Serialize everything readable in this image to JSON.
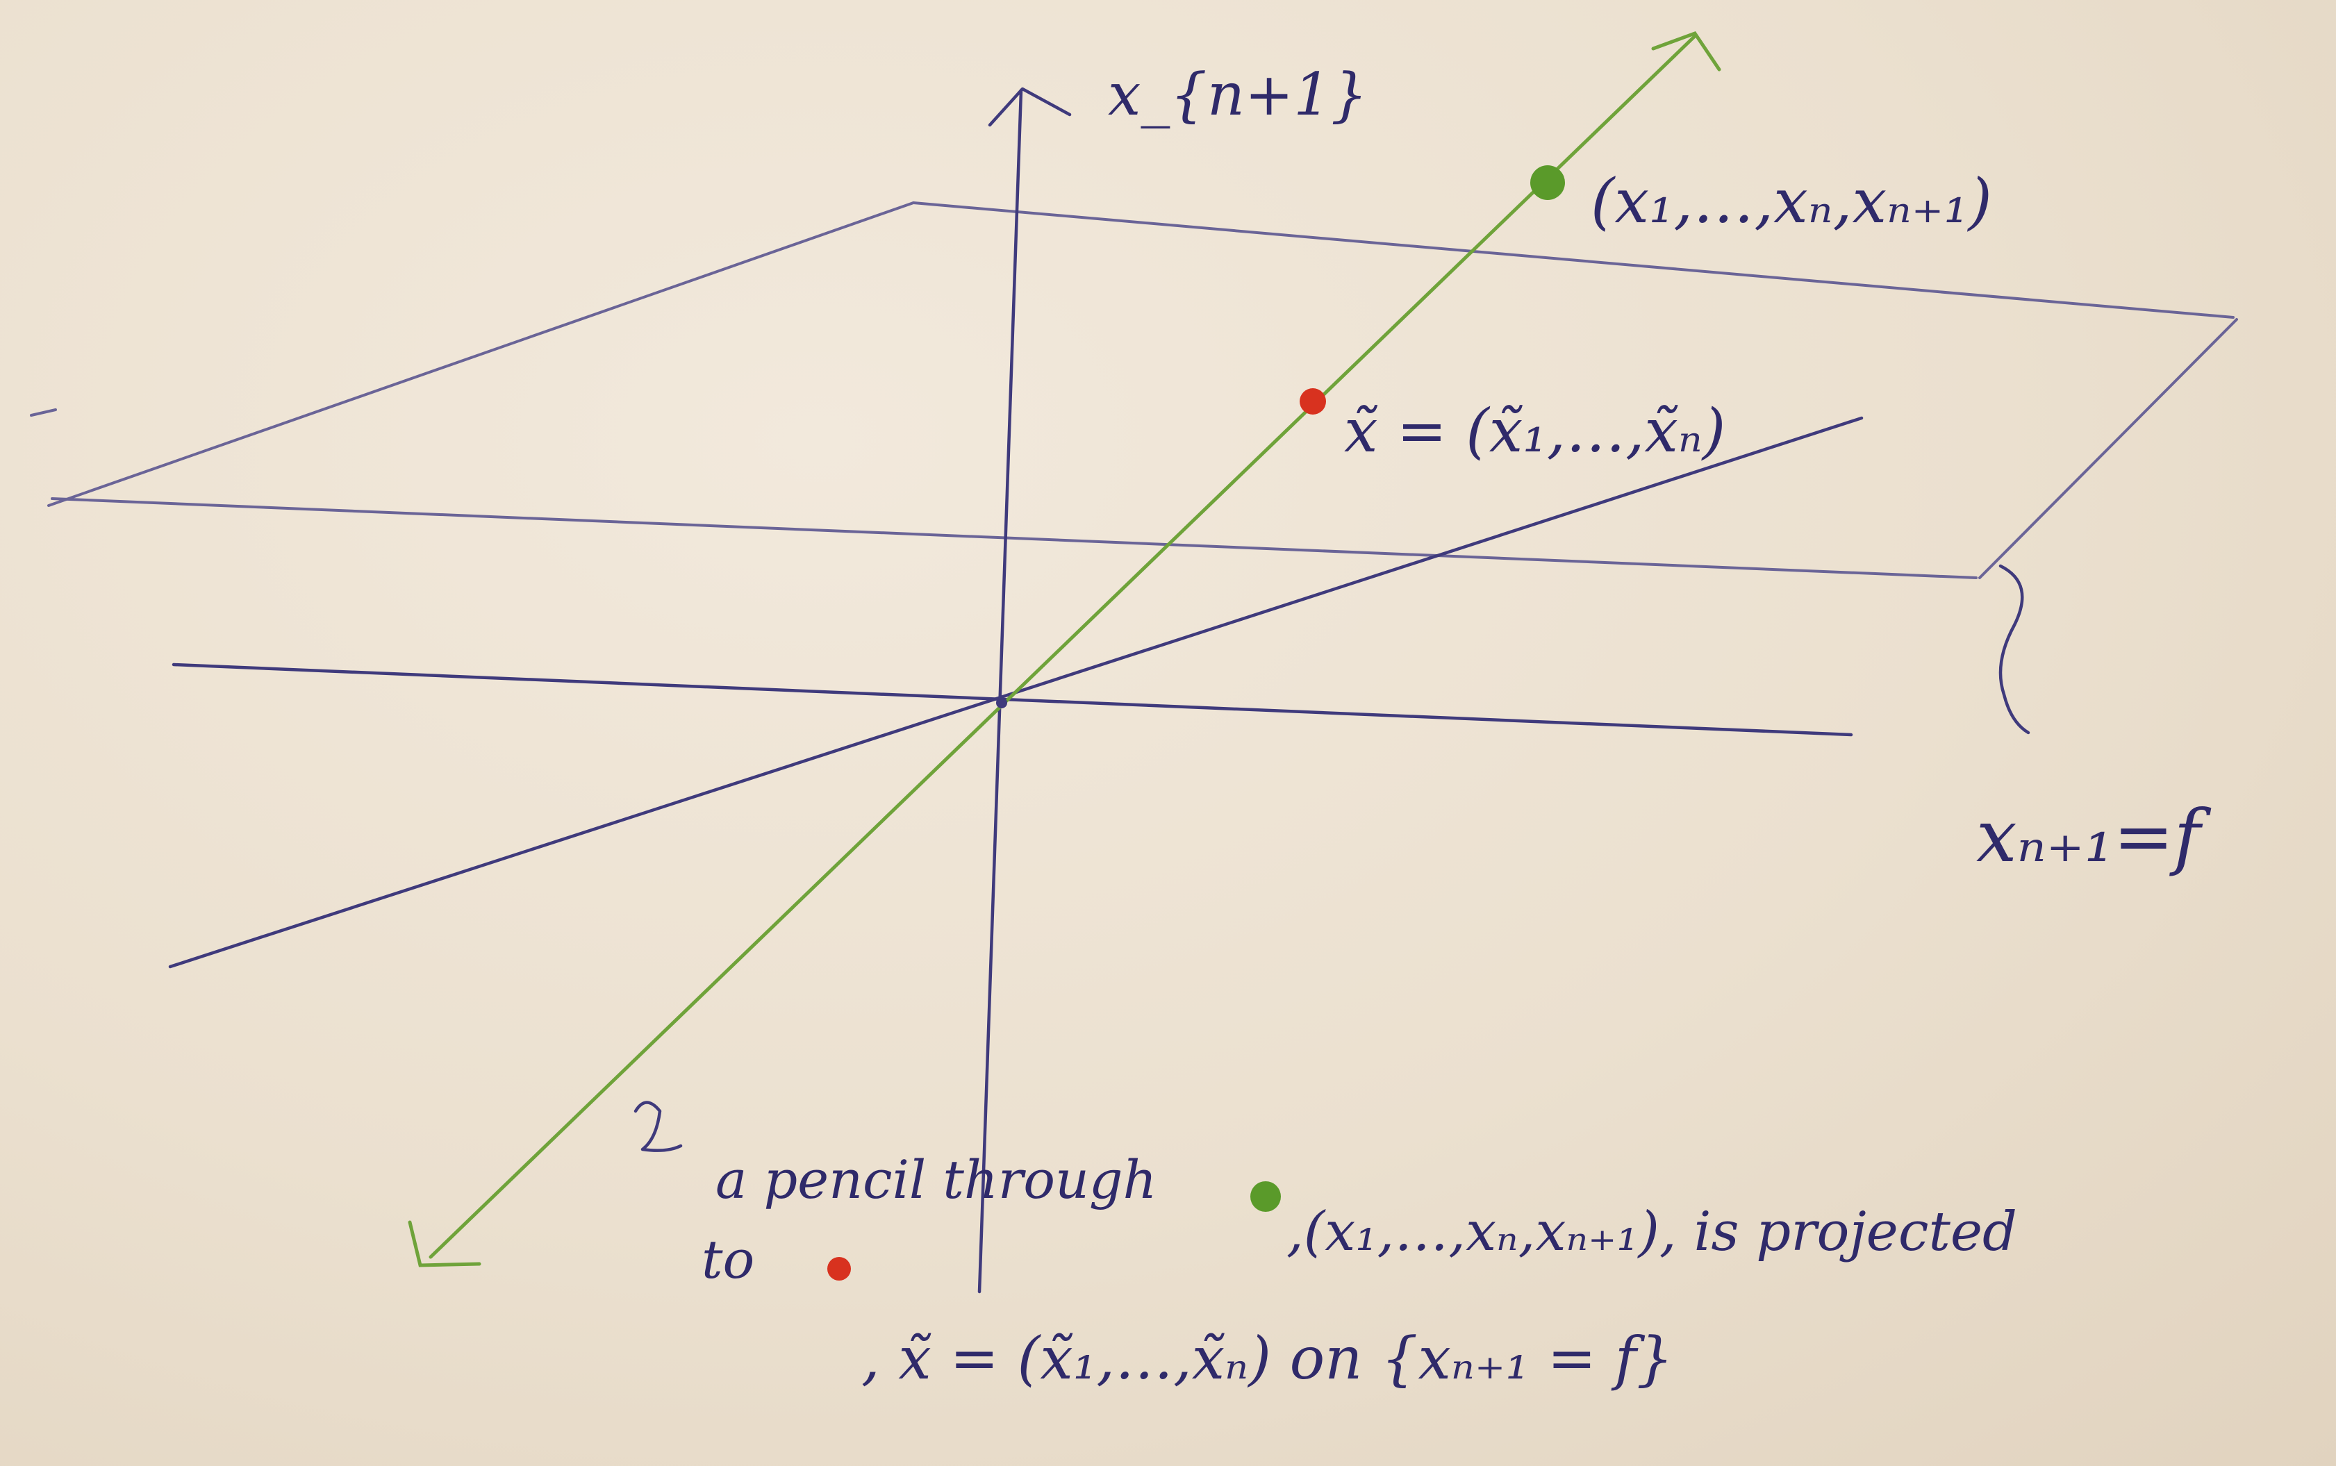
{
  "axis_label_top": "x_{n+1}",
  "point_green_label": "(x₁,…,xₙ,xₙ₊₁)",
  "point_red_label": "x̃ = (x̃₁,…,x̃ₙ)",
  "plane_label": "xₙ₊₁=f",
  "caption": {
    "line1_a": "a pencil through",
    "line1_b": ",(x₁,…,xₙ,xₙ₊₁), is projected",
    "line2_a": "to",
    "line2_b": ", x̃ = (x̃₁,…,x̃ₙ) on {xₙ₊₁ = f}"
  },
  "colors": {
    "ink": "#3f3a7c",
    "green": "#6fa33a",
    "red": "#d8321f",
    "paper": "#ede2d2"
  }
}
